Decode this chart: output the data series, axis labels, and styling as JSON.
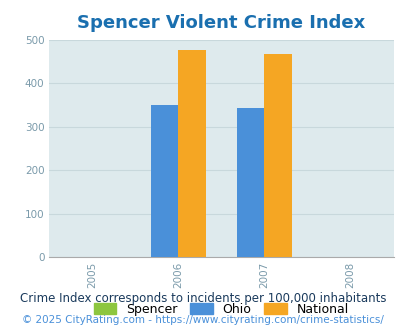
{
  "title": "Spencer Violent Crime Index",
  "title_color": "#1a6faf",
  "title_fontsize": 13,
  "years": [
    2005,
    2006,
    2007,
    2008
  ],
  "xlim": [
    2004.5,
    2008.5
  ],
  "ylim": [
    0,
    500
  ],
  "yticks": [
    0,
    100,
    200,
    300,
    400,
    500
  ],
  "bar_width": 0.32,
  "data": {
    "2006": {
      "Spencer": 0,
      "Ohio": 350,
      "National": 475
    },
    "2007": {
      "Spencer": 0,
      "Ohio": 344,
      "National": 467
    }
  },
  "colors": {
    "Spencer": "#8dc63f",
    "Ohio": "#4a90d9",
    "National": "#f5a623"
  },
  "background_color": "#deeaed",
  "legend_labels": [
    "Spencer",
    "Ohio",
    "National"
  ],
  "footnote1": "Crime Index corresponds to incidents per 100,000 inhabitants",
  "footnote2": "© 2025 CityRating.com - https://www.cityrating.com/crime-statistics/",
  "footnote1_color": "#1a3a5c",
  "footnote2_color": "#4a90d9",
  "footnote1_fontsize": 8.5,
  "footnote2_fontsize": 7.5,
  "tick_fontsize": 7.5,
  "legend_fontsize": 9,
  "grid_color": "#c8d8dc",
  "grid_linewidth": 0.8
}
